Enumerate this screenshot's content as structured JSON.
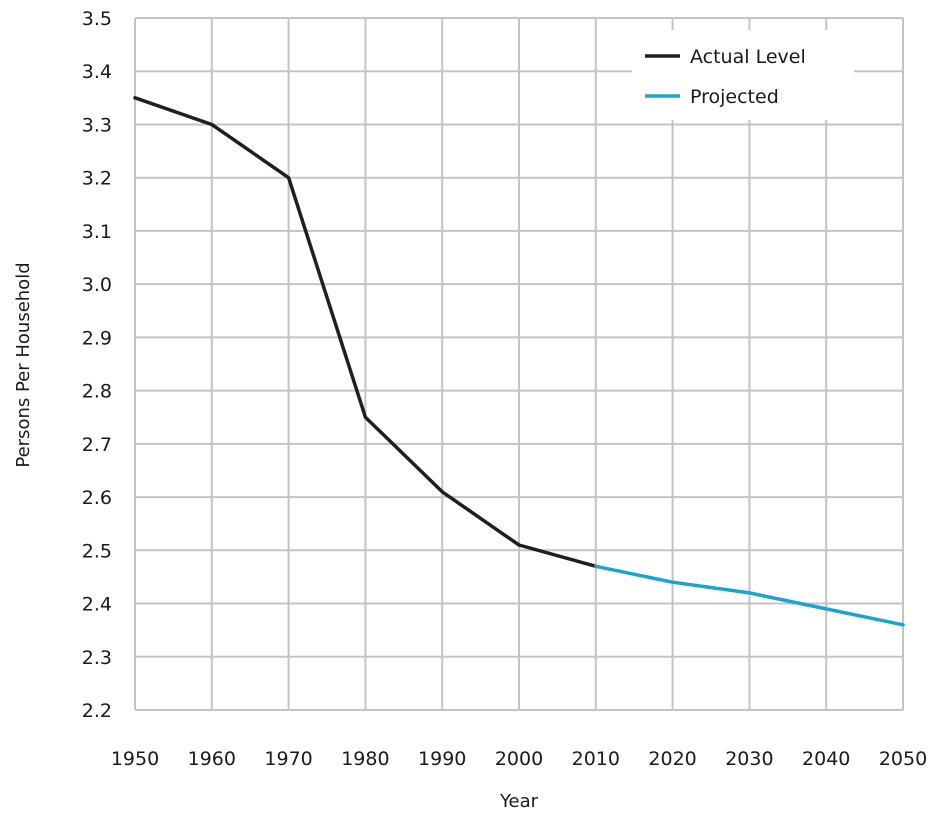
{
  "chart_data": {
    "type": "line",
    "title": "",
    "xlabel": "Year",
    "ylabel": "Persons Per Household",
    "x_ticks": [
      1950,
      1960,
      1970,
      1980,
      1990,
      2000,
      2010,
      2020,
      2030,
      2040,
      2050
    ],
    "y_ticks": [
      "3.5",
      "3.4",
      "3.3",
      "3.2",
      "3.1",
      "3.0",
      "2.9",
      "2.8",
      "2.7",
      "2.6",
      "2.5",
      "2.4",
      "2.3",
      "2.2"
    ],
    "xlim": [
      1950,
      2050
    ],
    "ylim": [
      2.2,
      3.5
    ],
    "grid": true,
    "legend_position": "top-right",
    "series": [
      {
        "name": "Actual Level",
        "color": "#1f1f1f",
        "x": [
          1950,
          1960,
          1970,
          1980,
          1990,
          2000,
          2010
        ],
        "y": [
          3.35,
          3.3,
          3.2,
          2.75,
          2.61,
          2.51,
          2.47
        ]
      },
      {
        "name": "Projected",
        "color": "#1da3d3",
        "x": [
          2010,
          2020,
          2030,
          2040,
          2050
        ],
        "y": [
          2.47,
          2.44,
          2.42,
          2.39,
          2.36
        ]
      }
    ]
  }
}
